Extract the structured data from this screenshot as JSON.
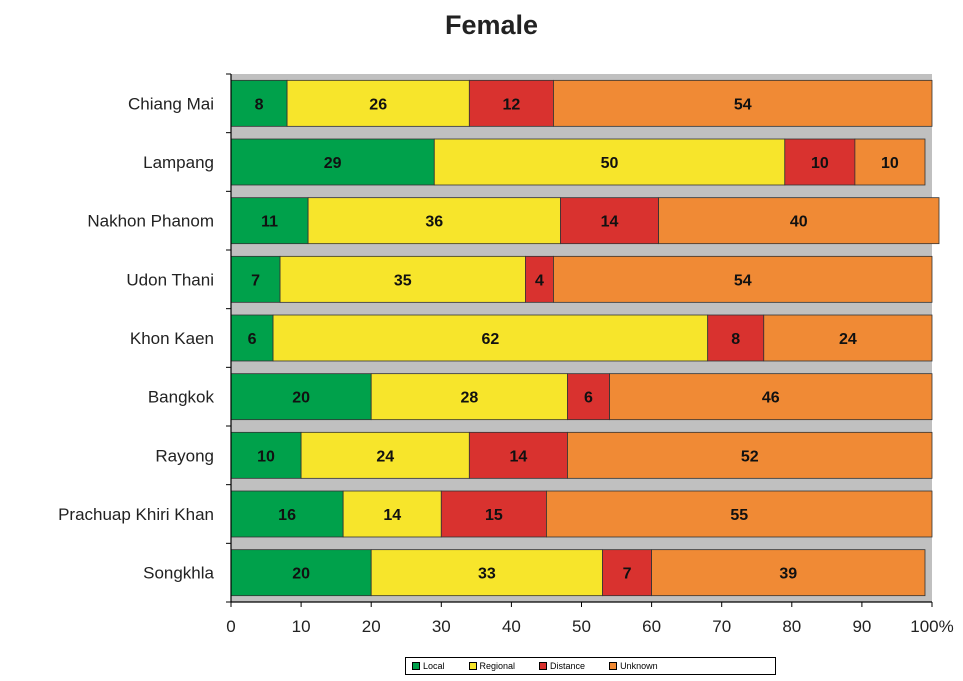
{
  "chart_data": {
    "type": "bar",
    "orientation": "horizontal",
    "stacked": "percent",
    "title": "Female",
    "categories": [
      "Chiang Mai",
      "Lampang",
      "Nakhon Phanom",
      "Udon Thani",
      "Khon Kaen",
      "Bangkok",
      "Rayong",
      "Prachuap Khiri Khan",
      "Songkhla"
    ],
    "series": [
      {
        "name": "Local",
        "color": "#00a14b",
        "values": [
          8,
          29,
          11,
          7,
          6,
          20,
          10,
          16,
          20
        ]
      },
      {
        "name": "Regional",
        "color": "#f7e52b",
        "values": [
          26,
          50,
          36,
          35,
          62,
          28,
          24,
          14,
          33
        ]
      },
      {
        "name": "Distance",
        "color": "#d9322f",
        "values": [
          12,
          10,
          14,
          4,
          8,
          6,
          14,
          15,
          7
        ]
      },
      {
        "name": "Unknown",
        "color": "#f08a35",
        "values": [
          54,
          10,
          40,
          54,
          24,
          46,
          52,
          55,
          39
        ]
      }
    ],
    "x_ticks": [
      "0",
      "10",
      "20",
      "30",
      "40",
      "50",
      "60",
      "70",
      "80",
      "90",
      "100%"
    ],
    "xlim": [
      0,
      100
    ],
    "legend_position": "bottom",
    "grid": false,
    "background_color": "#c0c0c0"
  }
}
